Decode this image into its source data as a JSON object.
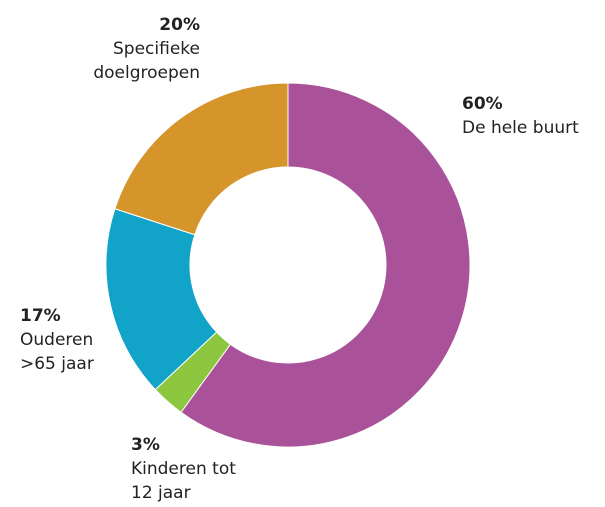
{
  "chart_data": {
    "type": "pie",
    "categories": [
      "De hele buurt",
      "Kinderen tot 12 jaar",
      "Ouderen >65 jaar",
      "Specifieke doelgroepen"
    ],
    "values": [
      60,
      3,
      17,
      20
    ],
    "value_labels": [
      "60%",
      "3%",
      "17%",
      "20%"
    ],
    "colors": [
      "#a9529a",
      "#8dc63f",
      "#12a3c8",
      "#d5952a"
    ],
    "donut": true
  }
}
